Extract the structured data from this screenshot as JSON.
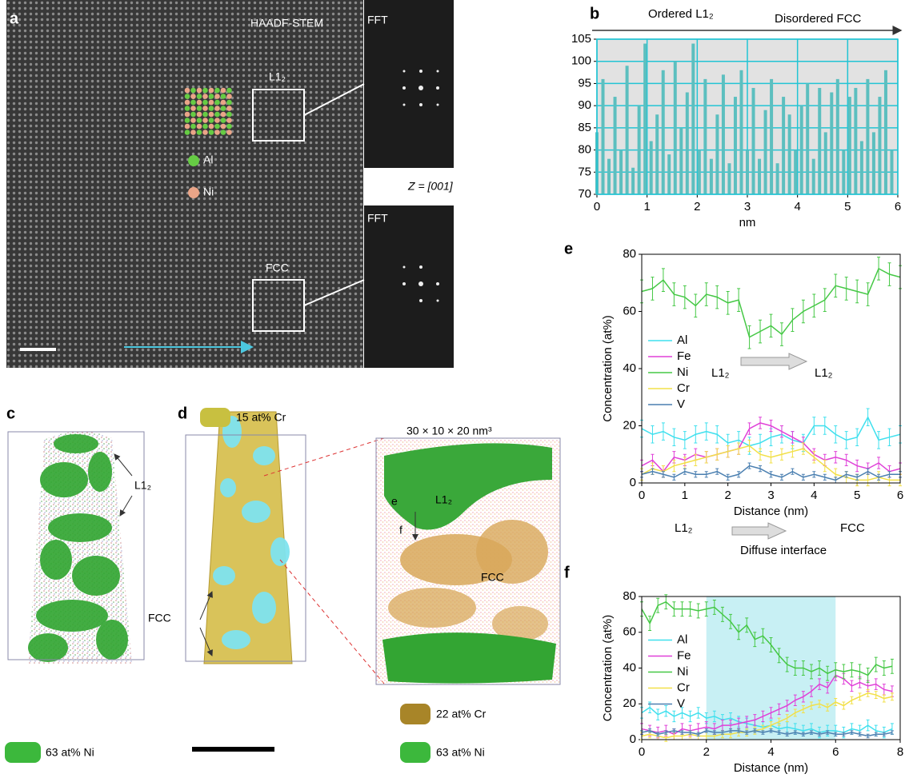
{
  "panels": {
    "a": {
      "label": "a",
      "haadf": "HAADF-STEM",
      "fft1": "FFT",
      "fft2": "FFT",
      "l12": "L1₂",
      "fcc": "FCC",
      "al": "Al",
      "ni": "Ni",
      "zone": "Z = [001]"
    },
    "c": {
      "label": "c",
      "l12": "L1₂",
      "legend": "63 at% Ni"
    },
    "d": {
      "label": "d",
      "legend_top": "15 at% Cr",
      "fcc": "FCC",
      "box": "30 × 10 × 20 nm³",
      "e": "e",
      "f": "f",
      "l12": "L1₂",
      "fcc_zoom": "FCC",
      "legend_cr": "22 at% Cr",
      "legend_ni": "63 at% Ni"
    }
  },
  "chart_data": [
    {
      "type": "bar",
      "label": "b",
      "xlabel": "nm",
      "annotations": [
        "Ordered L1₂",
        "Disordered FCC"
      ],
      "color": "#5cbfbf",
      "grid": true,
      "grid_color": "#22c4d4",
      "x": [
        0,
        0.12,
        0.24,
        0.36,
        0.48,
        0.6,
        0.72,
        0.84,
        0.96,
        1.08,
        1.2,
        1.32,
        1.44,
        1.56,
        1.68,
        1.8,
        1.92,
        2.04,
        2.16,
        2.28,
        2.4,
        2.52,
        2.64,
        2.76,
        2.88,
        3,
        3.12,
        3.24,
        3.36,
        3.48,
        3.6,
        3.72,
        3.84,
        3.96,
        4.08,
        4.2,
        4.32,
        4.44,
        4.56,
        4.68,
        4.8,
        4.92,
        5.04,
        5.16,
        5.28,
        5.4,
        5.52,
        5.64,
        5.76,
        5.88
      ],
      "values": [
        84,
        96,
        78,
        92,
        80,
        99,
        76,
        90,
        104,
        82,
        88,
        98,
        79,
        100,
        85,
        93,
        104,
        80,
        96,
        78,
        88,
        97,
        77,
        92,
        98,
        80,
        94,
        78,
        89,
        96,
        77,
        92,
        88,
        80,
        90,
        95,
        78,
        94,
        84,
        93,
        96,
        80,
        92,
        94,
        82,
        96,
        84,
        92,
        98,
        80
      ],
      "xlim": [
        0,
        6
      ],
      "xticks": [
        0,
        1,
        2,
        3,
        4,
        5,
        6
      ],
      "ylim": [
        70,
        105
      ],
      "yticks": [
        70,
        75,
        80,
        85,
        90,
        95,
        100,
        105
      ]
    },
    {
      "type": "line",
      "label": "e",
      "xlabel": "Distance (nm)",
      "ylabel": "Concentration (at%)",
      "legend": "center left",
      "annotations": [
        "L1₂",
        "L1₂"
      ],
      "x": [
        0,
        0.25,
        0.5,
        0.75,
        1,
        1.25,
        1.5,
        1.75,
        2,
        2.25,
        2.5,
        2.75,
        3,
        3.25,
        3.5,
        3.75,
        4,
        4.25,
        4.5,
        4.75,
        5,
        5.25,
        5.5,
        5.75,
        6
      ],
      "series": [
        {
          "name": "Al",
          "color": "#3fe0ee",
          "error": 3,
          "values": [
            19,
            17,
            18,
            16,
            15,
            17,
            18,
            17,
            14,
            15,
            13,
            14,
            16,
            17,
            15,
            14,
            20,
            20,
            17,
            15,
            16,
            23,
            15,
            16,
            17
          ]
        },
        {
          "name": "Fe",
          "color": "#e040d8",
          "error": 2,
          "values": [
            6,
            8,
            4,
            9,
            8,
            10,
            9,
            10,
            11,
            12,
            19,
            21,
            20,
            18,
            16,
            14,
            10,
            8,
            9,
            8,
            6,
            5,
            7,
            4,
            5
          ]
        },
        {
          "name": "Ni",
          "color": "#45c845",
          "error": 4,
          "values": [
            67,
            68,
            71,
            66,
            65,
            62,
            66,
            65,
            63,
            64,
            51,
            53,
            55,
            52,
            57,
            60,
            62,
            64,
            69,
            68,
            67,
            66,
            75,
            73,
            72
          ]
        },
        {
          "name": "Cr",
          "color": "#f2e048",
          "error": 2,
          "values": [
            3,
            5,
            4,
            6,
            7,
            8,
            9,
            10,
            11,
            12,
            13,
            10,
            9,
            10,
            11,
            12,
            9,
            6,
            3,
            2,
            1,
            1,
            2,
            1,
            1
          ]
        },
        {
          "name": "V",
          "color": "#4a7fb0",
          "error": 1,
          "values": [
            3,
            4,
            3,
            2,
            4,
            3,
            3,
            4,
            2,
            3,
            6,
            5,
            3,
            2,
            4,
            2,
            3,
            2,
            1,
            3,
            2,
            4,
            2,
            3,
            3
          ]
        }
      ],
      "xlim": [
        0,
        6
      ],
      "xticks": [
        0,
        1,
        2,
        3,
        4,
        5,
        6
      ],
      "ylim": [
        0,
        80
      ],
      "yticks": [
        0,
        20,
        40,
        60,
        80
      ]
    },
    {
      "type": "line",
      "label": "f",
      "xlabel": "Distance (nm)",
      "ylabel": "Concentration (at%)",
      "legend": "center left",
      "annotations": [
        "L1₂",
        "Diffuse interface",
        "FCC"
      ],
      "shade": [
        2,
        6
      ],
      "shade_color": "#c8f0f4",
      "x": [
        0,
        0.25,
        0.5,
        0.75,
        1,
        1.25,
        1.5,
        1.75,
        2,
        2.25,
        2.5,
        2.75,
        3,
        3.25,
        3.5,
        3.75,
        4,
        4.25,
        4.5,
        4.75,
        5,
        5.25,
        5.5,
        5.75,
        6,
        6.25,
        6.5,
        6.75,
        7,
        7.25,
        7.5,
        7.75
      ],
      "series": [
        {
          "name": "Al",
          "color": "#3fe0ee",
          "error": 3,
          "values": [
            15,
            18,
            14,
            16,
            13,
            15,
            13,
            15,
            12,
            13,
            11,
            12,
            10,
            9,
            8,
            7,
            8,
            6,
            7,
            6,
            5,
            6,
            4,
            5,
            5,
            4,
            6,
            5,
            8,
            5,
            4,
            6
          ]
        },
        {
          "name": "Fe",
          "color": "#e040d8",
          "error": 3,
          "values": [
            6,
            5,
            4,
            5,
            3,
            6,
            5,
            6,
            7,
            6,
            8,
            8,
            9,
            10,
            11,
            13,
            15,
            17,
            19,
            22,
            24,
            27,
            31,
            29,
            36,
            34,
            30,
            32,
            30,
            31,
            28,
            27
          ]
        },
        {
          "name": "Ni",
          "color": "#45c845",
          "error": 4,
          "values": [
            73,
            65,
            75,
            77,
            73,
            73,
            73,
            72,
            73,
            74,
            70,
            66,
            60,
            64,
            56,
            58,
            53,
            47,
            42,
            40,
            40,
            38,
            40,
            37,
            39,
            38,
            39,
            38,
            36,
            42,
            40,
            41
          ]
        },
        {
          "name": "Cr",
          "color": "#f2e048",
          "error": 2,
          "values": [
            2,
            3,
            2,
            1,
            2,
            2,
            3,
            2,
            2,
            2,
            3,
            3,
            4,
            4,
            5,
            6,
            8,
            10,
            12,
            15,
            17,
            19,
            20,
            18,
            21,
            19,
            22,
            24,
            26,
            25,
            23,
            24
          ]
        },
        {
          "name": "V",
          "color": "#4a7fb0",
          "error": 1,
          "values": [
            4,
            5,
            3,
            4,
            5,
            4,
            4,
            3,
            5,
            4,
            4,
            5,
            5,
            4,
            5,
            4,
            5,
            4,
            3,
            4,
            3,
            4,
            3,
            4,
            3,
            3,
            4,
            3,
            2,
            3,
            3,
            4
          ]
        }
      ],
      "xlim": [
        0,
        8
      ],
      "xticks": [
        0,
        2,
        4,
        6,
        8
      ],
      "ylim": [
        0,
        80
      ],
      "yticks": [
        0,
        20,
        40,
        60,
        80
      ]
    }
  ]
}
